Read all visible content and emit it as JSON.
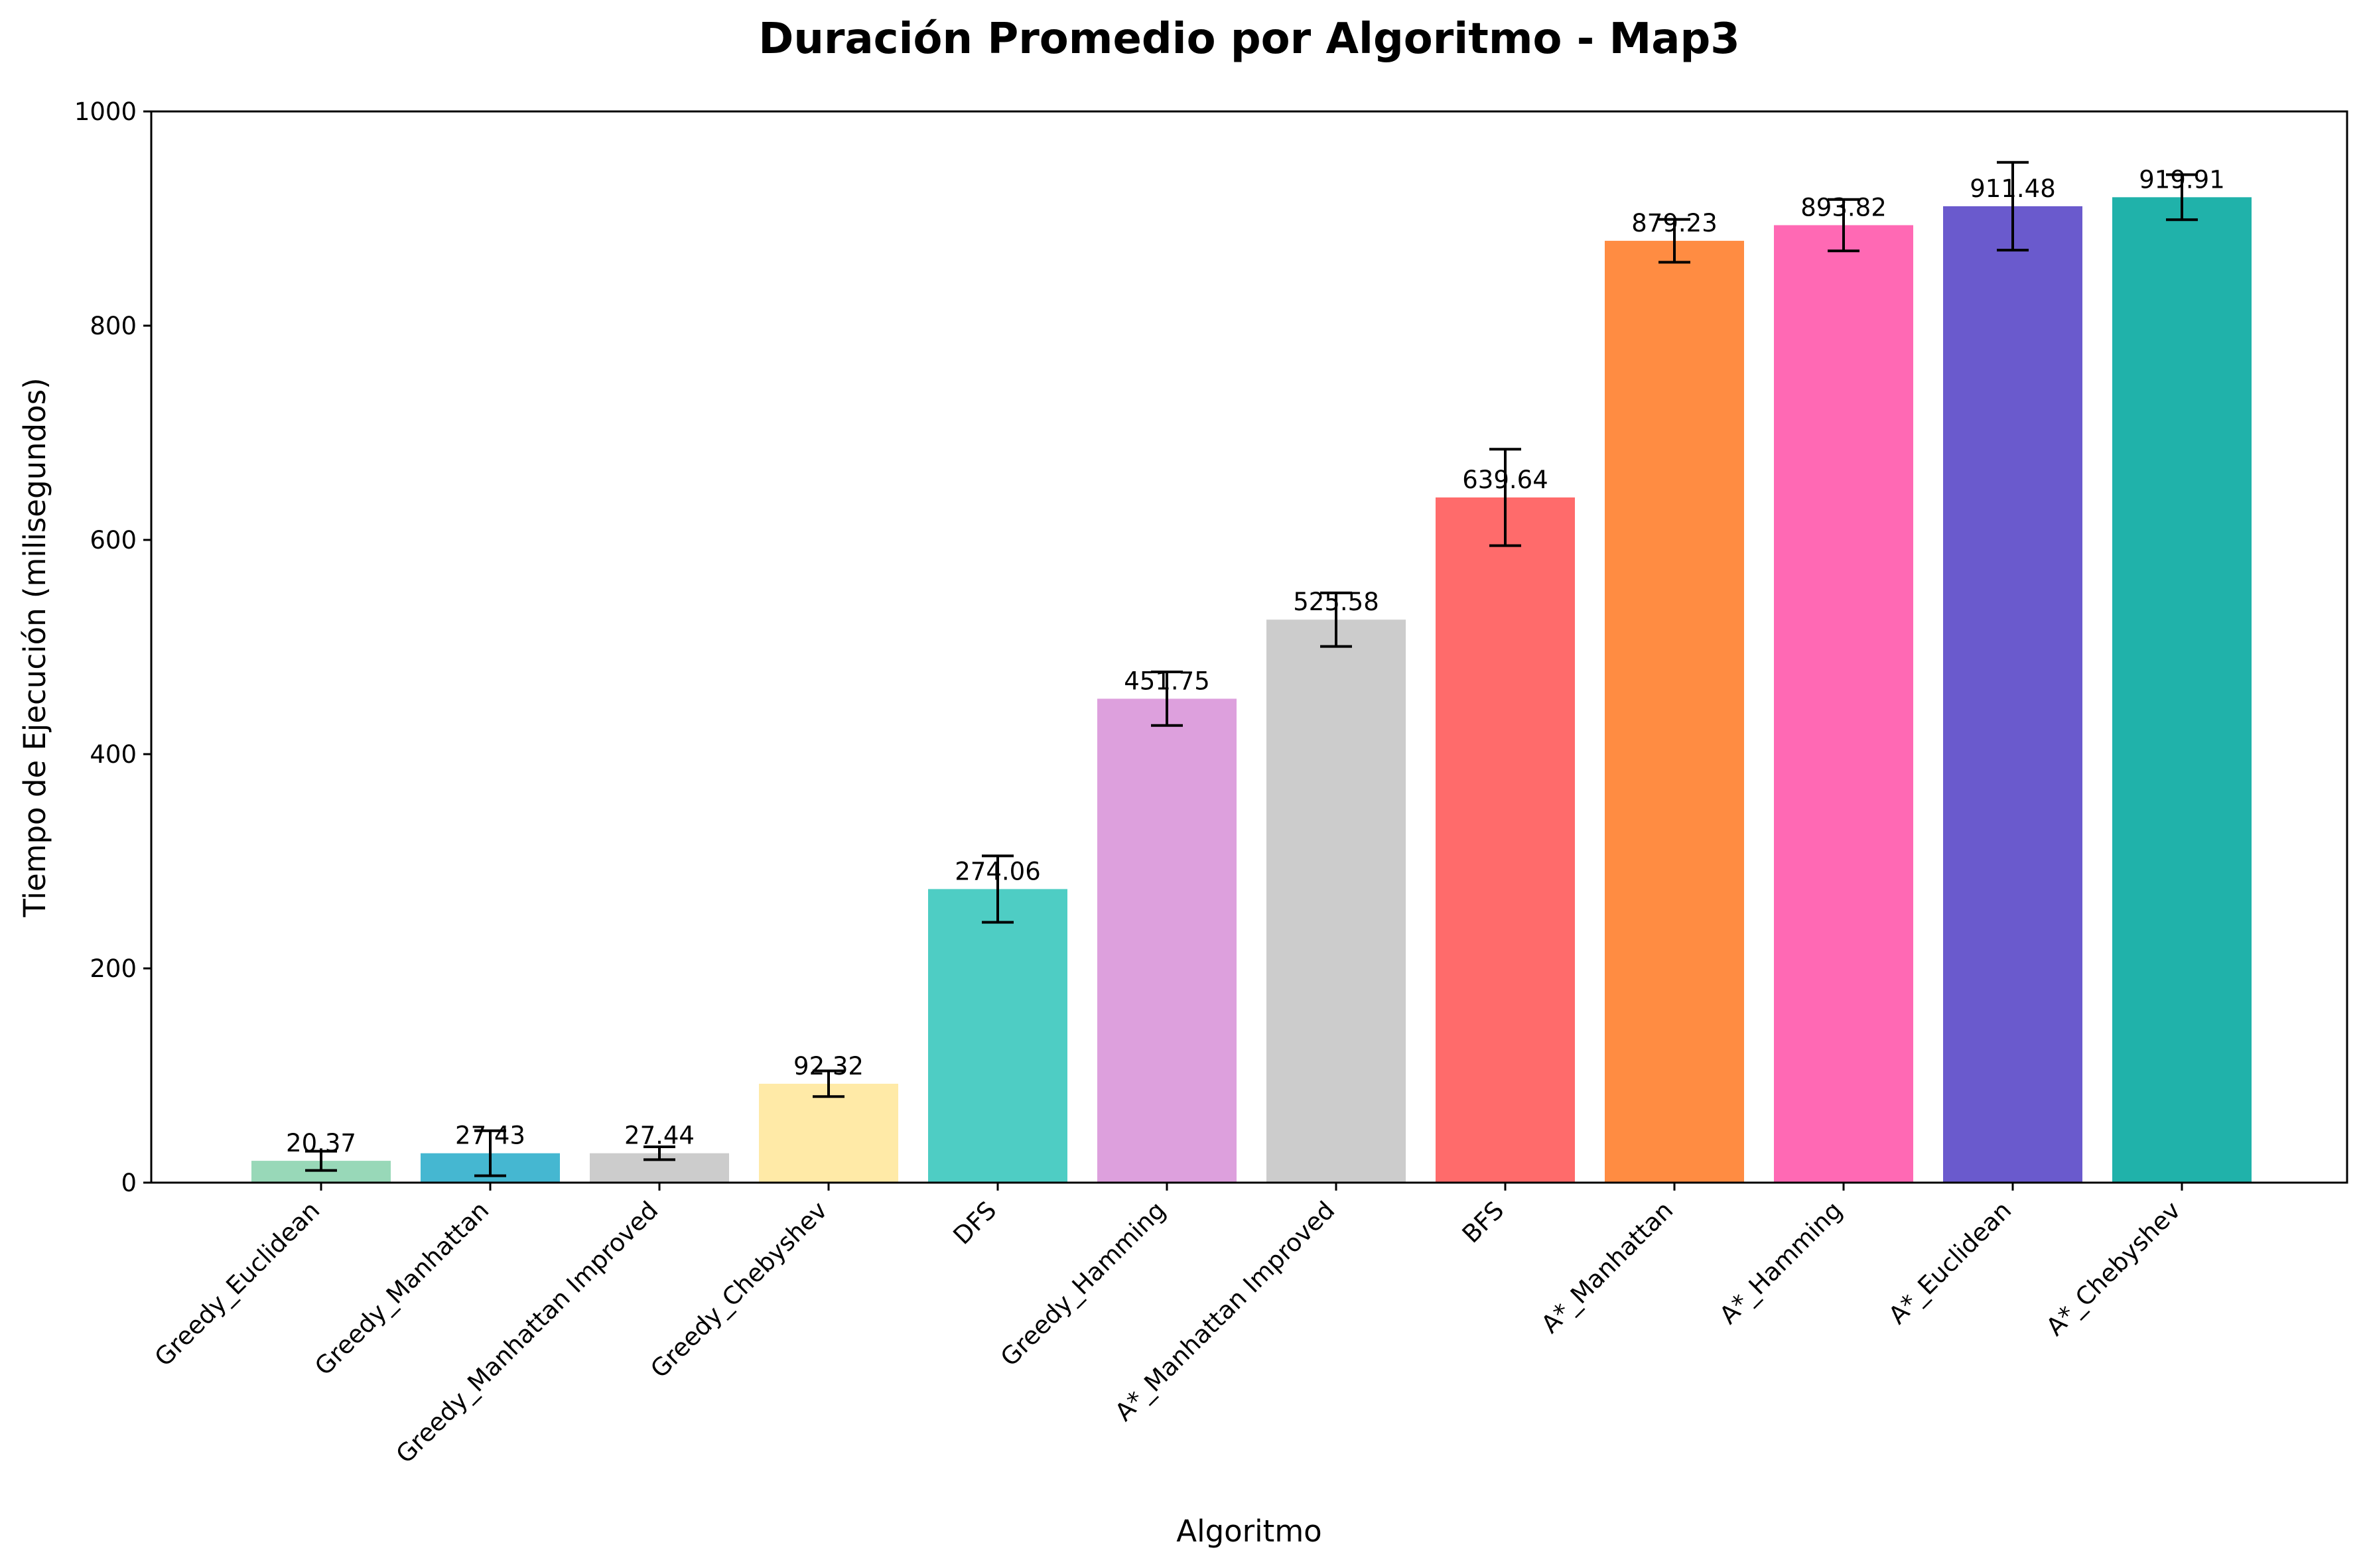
{
  "chart_data": {
    "type": "bar",
    "title": "Duración Promedio por Algoritmo - Map3",
    "xlabel": "Algoritmo",
    "ylabel": "Tiempo de Ejecución (milisegundos)",
    "ylim": [
      0,
      1000
    ],
    "yticks": [
      0,
      200,
      400,
      600,
      800,
      1000
    ],
    "grid": false,
    "categories": [
      "Greedy_Euclidean",
      "Greedy_Manhattan",
      "Greedy_Manhattan Improved",
      "Greedy_Chebyshev",
      "DFS",
      "Greedy_Hamming",
      "A*_Manhattan Improved",
      "BFS",
      "A*_Manhattan",
      "A*_Hamming",
      "A*_Euclidean",
      "A*_Chebyshev"
    ],
    "values": [
      20.37,
      27.43,
      27.44,
      92.32,
      274.06,
      451.75,
      525.58,
      639.64,
      879.23,
      893.82,
      911.48,
      919.91
    ],
    "value_labels": [
      "20.37",
      "27.43",
      "27.44",
      "92.32",
      "274.06",
      "451.75",
      "525.58",
      "639.64",
      "879.23",
      "893.82",
      "911.48",
      "919.91"
    ],
    "error": [
      9,
      21,
      6,
      12,
      31,
      25,
      25,
      45,
      20,
      24,
      41,
      21
    ],
    "colors": [
      "#98d8b8",
      "#45b7d1",
      "#cccccc",
      "#ffeaa7",
      "#4ecdc4",
      "#dda0dd",
      "#cccccc",
      "#ff6b6b",
      "#ff8c42",
      "#ff69b4",
      "#6a5acd",
      "#20b2aa"
    ]
  }
}
